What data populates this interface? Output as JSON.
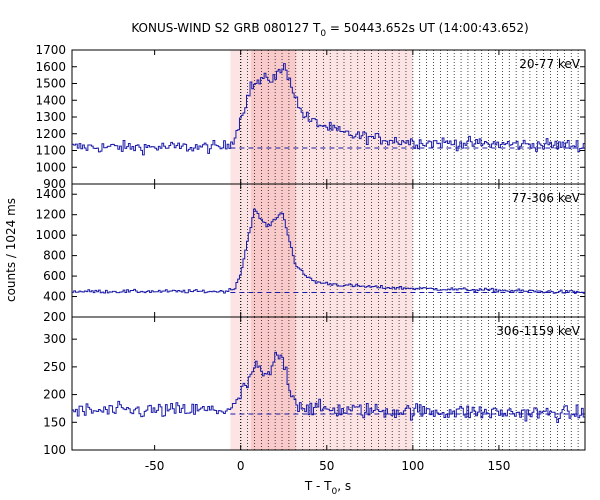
{
  "chart_data": {
    "type": "line",
    "title": "KONUS-WIND S2 GRB 080127 T",
    "title_sub": "0",
    "title_tail": " = 50443.652s UT (14:00:43.652)",
    "xlabel": "T - T",
    "xlabel_sub": "0",
    "xlabel_tail": ", s",
    "ylabel": "counts / 1024 ms",
    "xlim": [
      -98,
      200
    ],
    "xticks": [
      -50,
      0,
      50,
      100,
      150
    ],
    "bin_width_s": 1.024,
    "shaded_interval": [
      -6,
      100
    ],
    "dark_shaded_interval": [
      6,
      32
    ],
    "spectral_interval_boundaries": [
      0,
      4,
      8,
      12,
      16,
      20,
      24,
      28,
      32,
      36,
      40,
      44,
      48,
      52,
      56,
      60,
      64,
      68,
      72,
      76,
      80,
      84,
      88,
      92,
      96,
      100,
      104,
      108,
      112,
      116,
      120,
      124,
      128,
      132,
      136,
      140,
      144,
      148,
      152,
      156,
      160,
      164,
      168,
      172,
      176,
      180,
      184,
      188,
      192,
      196
    ],
    "series": [
      {
        "name": "20-77 keV",
        "ylim": [
          900,
          1700
        ],
        "yticks": [
          900,
          1000,
          1100,
          1200,
          1300,
          1400,
          1500,
          1600,
          1700
        ],
        "background": 1115,
        "noise": 25,
        "light_curve_nodes": [
          [
            -98,
            1120
          ],
          [
            -10,
            1120
          ],
          [
            -6,
            1140
          ],
          [
            -2,
            1220
          ],
          [
            2,
            1360
          ],
          [
            6,
            1480
          ],
          [
            12,
            1520
          ],
          [
            18,
            1530
          ],
          [
            22,
            1560
          ],
          [
            26,
            1600
          ],
          [
            30,
            1480
          ],
          [
            34,
            1350
          ],
          [
            40,
            1280
          ],
          [
            50,
            1240
          ],
          [
            60,
            1200
          ],
          [
            80,
            1170
          ],
          [
            100,
            1150
          ],
          [
            140,
            1140
          ],
          [
            200,
            1130
          ]
        ]
      },
      {
        "name": "77-306 keV",
        "ylim": [
          200,
          1500
        ],
        "yticks": [
          200,
          400,
          600,
          800,
          1000,
          1200,
          1400
        ],
        "background": 440,
        "noise": 12,
        "light_curve_nodes": [
          [
            -98,
            450
          ],
          [
            -10,
            450
          ],
          [
            -4,
            470
          ],
          [
            0,
            620
          ],
          [
            4,
            950
          ],
          [
            8,
            1250
          ],
          [
            12,
            1150
          ],
          [
            16,
            1080
          ],
          [
            20,
            1160
          ],
          [
            24,
            1230
          ],
          [
            28,
            980
          ],
          [
            32,
            700
          ],
          [
            38,
            600
          ],
          [
            44,
            540
          ],
          [
            60,
            510
          ],
          [
            80,
            490
          ],
          [
            100,
            480
          ],
          [
            150,
            460
          ],
          [
            200,
            440
          ]
        ]
      },
      {
        "name": "306-1159 keV",
        "ylim": [
          100,
          340
        ],
        "yticks": [
          100,
          150,
          200,
          250,
          300
        ],
        "background": 165,
        "noise": 10,
        "light_curve_nodes": [
          [
            -98,
            170
          ],
          [
            -10,
            172
          ],
          [
            -4,
            175
          ],
          [
            0,
            200
          ],
          [
            4,
            220
          ],
          [
            8,
            250
          ],
          [
            12,
            240
          ],
          [
            16,
            230
          ],
          [
            20,
            265
          ],
          [
            24,
            270
          ],
          [
            28,
            220
          ],
          [
            32,
            185
          ],
          [
            40,
            175
          ],
          [
            60,
            172
          ],
          [
            100,
            170
          ],
          [
            200,
            165
          ]
        ]
      }
    ]
  },
  "colors": {
    "curve": "#1a1aa8",
    "background_line": "#1a1aa8",
    "shade_light": "#fde4e4",
    "shade_dark": "#f9caca",
    "frame": "#000000"
  }
}
